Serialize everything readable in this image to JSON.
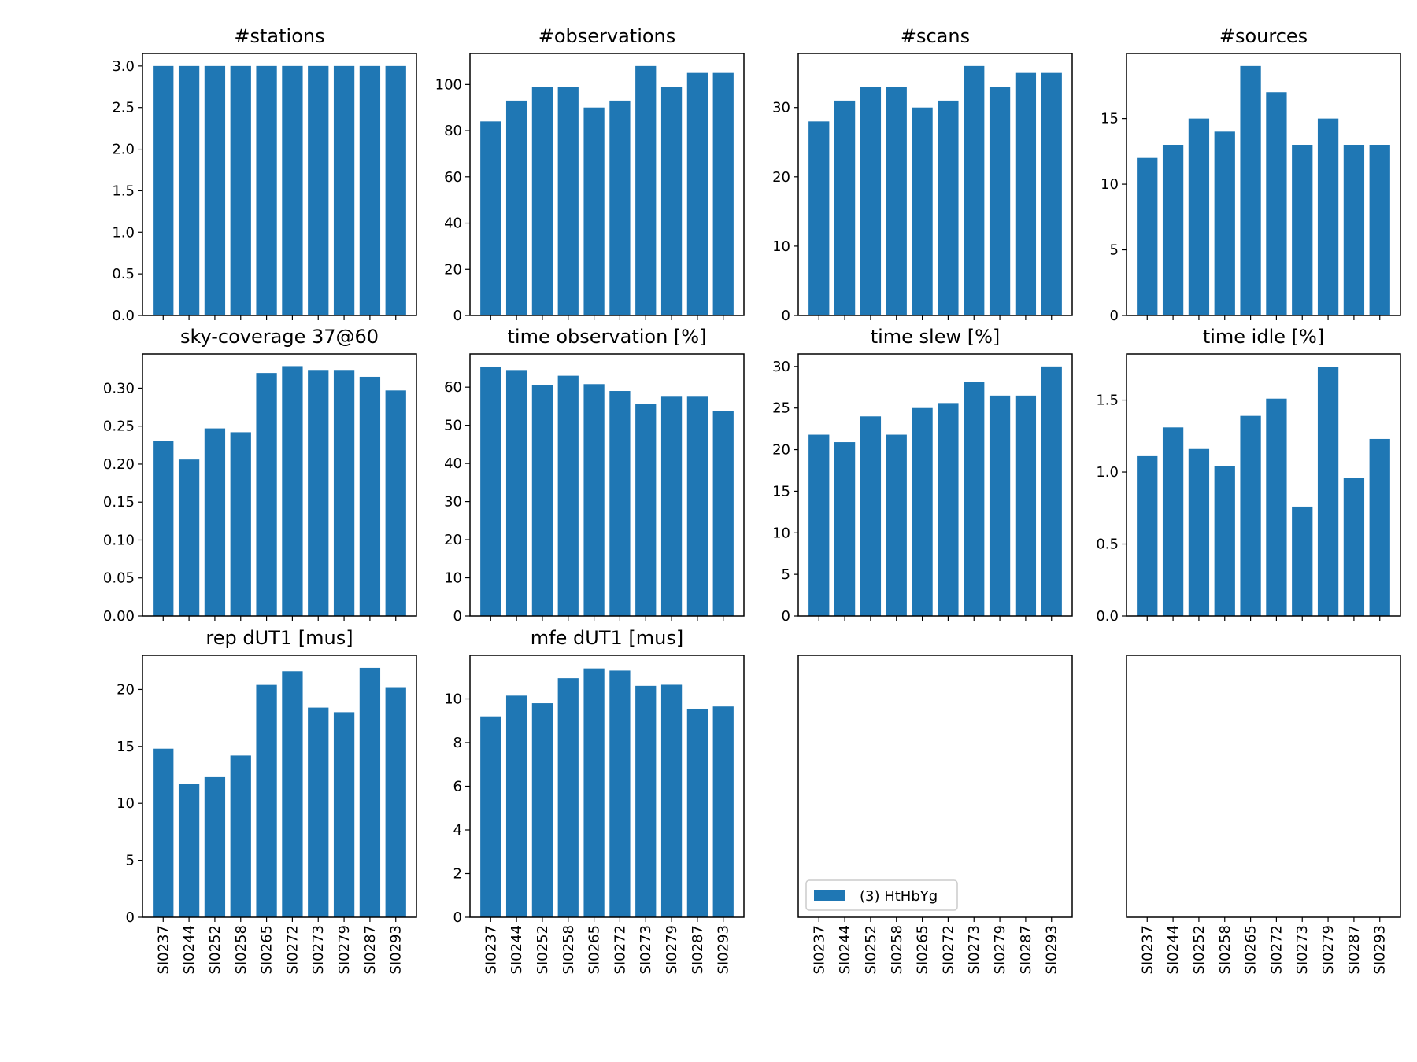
{
  "colors": {
    "bar": "#1f77b4",
    "axis": "#000000",
    "background": "#ffffff",
    "legend_border": "#cccccc"
  },
  "categories": [
    "SI0237",
    "SI0244",
    "SI0252",
    "SI0258",
    "SI0265",
    "SI0272",
    "SI0273",
    "SI0279",
    "SI0287",
    "SI0293"
  ],
  "chart_data": [
    {
      "type": "bar",
      "title": "#stations",
      "values": [
        3,
        3,
        3,
        3,
        3,
        3,
        3,
        3,
        3,
        3
      ],
      "ylim": [
        0,
        3.15
      ],
      "yticks": [
        0.0,
        0.5,
        1.0,
        1.5,
        2.0,
        2.5,
        3.0
      ],
      "ytick_labels": [
        "0.0",
        "0.5",
        "1.0",
        "1.5",
        "2.0",
        "2.5",
        "3.0"
      ],
      "show_xtick_labels": false
    },
    {
      "type": "bar",
      "title": "#observations",
      "values": [
        84,
        93,
        99,
        99,
        90,
        93,
        108,
        99,
        105,
        105
      ],
      "ylim": [
        0,
        113.4
      ],
      "yticks": [
        0,
        20,
        40,
        60,
        80,
        100
      ],
      "ytick_labels": [
        "0",
        "20",
        "40",
        "60",
        "80",
        "100"
      ],
      "show_xtick_labels": false
    },
    {
      "type": "bar",
      "title": "#scans",
      "values": [
        28,
        31,
        33,
        33,
        30,
        31,
        36,
        33,
        35,
        35
      ],
      "ylim": [
        0,
        37.8
      ],
      "yticks": [
        0,
        10,
        20,
        30
      ],
      "ytick_labels": [
        "0",
        "10",
        "20",
        "30"
      ],
      "show_xtick_labels": false
    },
    {
      "type": "bar",
      "title": "#sources",
      "values": [
        12,
        13,
        15,
        14,
        19,
        17,
        13,
        15,
        13,
        13
      ],
      "ylim": [
        0,
        19.95
      ],
      "yticks": [
        0,
        5,
        10,
        15
      ],
      "ytick_labels": [
        "0",
        "5",
        "10",
        "15"
      ],
      "show_xtick_labels": false
    },
    {
      "type": "bar",
      "title": "sky-coverage 37@60",
      "values": [
        0.23,
        0.206,
        0.247,
        0.242,
        0.32,
        0.329,
        0.324,
        0.324,
        0.315,
        0.297
      ],
      "ylim": [
        0,
        0.345
      ],
      "yticks": [
        0,
        0.05,
        0.1,
        0.15,
        0.2,
        0.25,
        0.3
      ],
      "ytick_labels": [
        "0.00",
        "0.05",
        "0.10",
        "0.15",
        "0.20",
        "0.25",
        "0.30"
      ],
      "show_xtick_labels": false
    },
    {
      "type": "bar",
      "title": "time observation [%]",
      "values": [
        65.4,
        64.5,
        60.5,
        63.0,
        60.8,
        59.0,
        55.6,
        57.5,
        57.5,
        53.7
      ],
      "ylim": [
        0,
        68.7
      ],
      "yticks": [
        0,
        10,
        20,
        30,
        40,
        50,
        60
      ],
      "ytick_labels": [
        "0",
        "10",
        "20",
        "30",
        "40",
        "50",
        "60"
      ],
      "show_xtick_labels": false
    },
    {
      "type": "bar",
      "title": "time slew [%]",
      "values": [
        21.8,
        20.9,
        24.0,
        21.8,
        25.0,
        25.6,
        28.1,
        26.5,
        26.5,
        30.0
      ],
      "ylim": [
        0,
        31.5
      ],
      "yticks": [
        0,
        5,
        10,
        15,
        20,
        25,
        30
      ],
      "ytick_labels": [
        "0",
        "5",
        "10",
        "15",
        "20",
        "25",
        "30"
      ],
      "show_xtick_labels": false
    },
    {
      "type": "bar",
      "title": "time idle [%]",
      "values": [
        1.11,
        1.31,
        1.16,
        1.04,
        1.39,
        1.51,
        0.76,
        1.73,
        0.96,
        1.23
      ],
      "ylim": [
        0,
        1.82
      ],
      "yticks": [
        0,
        0.5,
        1.0,
        1.5
      ],
      "ytick_labels": [
        "0.0",
        "0.5",
        "1.0",
        "1.5"
      ],
      "show_xtick_labels": false
    },
    {
      "type": "bar",
      "title": "rep dUT1 [mus]",
      "values": [
        14.8,
        11.7,
        12.3,
        14.2,
        20.4,
        21.6,
        18.4,
        18.0,
        21.9,
        20.2
      ],
      "ylim": [
        0,
        23.0
      ],
      "yticks": [
        0,
        5,
        10,
        15,
        20
      ],
      "ytick_labels": [
        "0",
        "5",
        "10",
        "15",
        "20"
      ],
      "show_xtick_labels": true
    },
    {
      "type": "bar",
      "title": "mfe dUT1 [mus]",
      "values": [
        9.2,
        10.15,
        9.8,
        10.95,
        11.4,
        11.3,
        10.6,
        10.65,
        9.55,
        9.65
      ],
      "ylim": [
        0,
        12.0
      ],
      "yticks": [
        0,
        2,
        4,
        6,
        8,
        10
      ],
      "ytick_labels": [
        "0",
        "2",
        "4",
        "6",
        "8",
        "10"
      ],
      "show_xtick_labels": true
    },
    {
      "type": "bar",
      "title": "",
      "values": [],
      "ylim": [
        0,
        1
      ],
      "yticks": [],
      "ytick_labels": [],
      "show_xtick_labels": true,
      "legend": {
        "label": "(3) HtHbYg",
        "placement": "lower-left"
      }
    },
    {
      "type": "bar",
      "title": "",
      "values": [],
      "ylim": [
        0,
        1
      ],
      "yticks": [],
      "ytick_labels": [],
      "show_xtick_labels": true
    }
  ]
}
